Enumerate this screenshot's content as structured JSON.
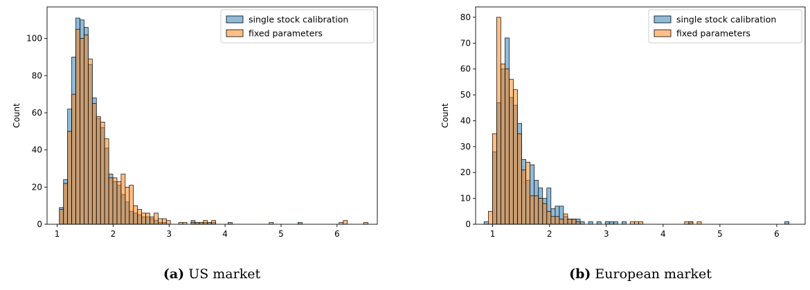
{
  "colors": {
    "series_a": "#1f77b4",
    "series_b": "#ff7f0e"
  },
  "chart_data": [
    {
      "type": "bar",
      "caption_label": "(a)",
      "caption_text": "US market",
      "xlabel": "",
      "ylabel": "Count",
      "xlim": [
        0.82,
        6.72
      ],
      "ylim": [
        0,
        117
      ],
      "xticks": [
        1,
        2,
        3,
        4,
        5,
        6
      ],
      "yticks": [
        0,
        20,
        40,
        60,
        80,
        100
      ],
      "legend_position": "top-right",
      "bin_start": 1.04,
      "bin_width": 0.0735,
      "series": [
        {
          "name": "single stock calibration",
          "color": "#1f77b4",
          "values": [
            9,
            24,
            62,
            90,
            111,
            110,
            106,
            86,
            68,
            57,
            52,
            41,
            27,
            23,
            21,
            16,
            12,
            7,
            6,
            5,
            4,
            4,
            3,
            2,
            1,
            1,
            0,
            0,
            0,
            0,
            0,
            0,
            2,
            1,
            1,
            1,
            1,
            1,
            0,
            0,
            0,
            1,
            0,
            0,
            0,
            0,
            0,
            0,
            0,
            0,
            0,
            0,
            0,
            0,
            0,
            0,
            0,
            0,
            1,
            0,
            0,
            0,
            0,
            0,
            0,
            0,
            0,
            0,
            0,
            0,
            0,
            0,
            0,
            0,
            0
          ]
        },
        {
          "name": "fixed parameters",
          "color": "#ff7f0e",
          "values": [
            8,
            22,
            50,
            70,
            105,
            100,
            102,
            89,
            65,
            58,
            55,
            46,
            25,
            25,
            23,
            27,
            20,
            21,
            10,
            8,
            6,
            6,
            4,
            6,
            3,
            3,
            2,
            0,
            0,
            1,
            1,
            0,
            1,
            1,
            1,
            2,
            1,
            2,
            0,
            0,
            0,
            0,
            0,
            0,
            0,
            0,
            0,
            0,
            0,
            0,
            0,
            1,
            0,
            0,
            0,
            0,
            0,
            0,
            0,
            0,
            0,
            0,
            0,
            0,
            0,
            0,
            0,
            0,
            1,
            2,
            0,
            0,
            0,
            0,
            1
          ]
        }
      ]
    },
    {
      "type": "bar",
      "caption_label": "(b)",
      "caption_text": "European market",
      "xlabel": "",
      "ylabel": "Count",
      "xlim": [
        0.7,
        6.5
      ],
      "ylim": [
        0,
        84
      ],
      "xticks": [
        1,
        2,
        3,
        4,
        5,
        6
      ],
      "yticks": [
        0,
        10,
        20,
        30,
        40,
        50,
        60,
        70,
        80
      ],
      "legend_position": "top-right",
      "bin_start": 0.85,
      "bin_width": 0.0735,
      "series": [
        {
          "name": "single stock calibration",
          "color": "#1f77b4",
          "values": [
            1,
            0,
            28,
            47,
            60,
            72,
            49,
            46,
            39,
            25,
            17,
            23,
            17,
            14,
            10,
            14,
            6,
            7,
            7,
            3,
            2,
            2,
            2,
            1,
            0,
            1,
            0,
            1,
            0,
            1,
            1,
            1,
            0,
            1,
            0,
            0,
            0,
            0,
            0,
            0,
            0,
            0,
            0,
            0,
            0,
            0,
            0,
            0,
            0,
            1,
            0,
            0,
            0,
            0,
            0,
            0,
            0,
            0,
            0,
            0,
            0,
            0,
            0,
            0,
            0,
            0,
            0,
            0,
            0,
            0,
            0,
            0,
            1
          ]
        },
        {
          "name": "fixed parameters",
          "color": "#ff7f0e",
          "values": [
            0,
            5,
            35,
            80,
            62,
            60,
            56,
            52,
            35,
            21,
            24,
            11,
            11,
            10,
            8,
            5,
            3,
            3,
            2,
            4,
            2,
            2,
            1,
            0,
            0,
            0,
            0,
            0,
            0,
            0,
            0,
            0,
            0,
            0,
            0,
            1,
            1,
            1,
            0,
            0,
            0,
            0,
            0,
            0,
            0,
            0,
            0,
            0,
            1,
            1,
            0,
            1,
            0,
            0,
            0,
            0,
            0,
            0,
            0,
            0,
            0,
            0,
            0,
            0,
            0,
            0,
            0,
            0,
            0,
            0,
            0,
            0,
            0
          ]
        }
      ]
    }
  ]
}
